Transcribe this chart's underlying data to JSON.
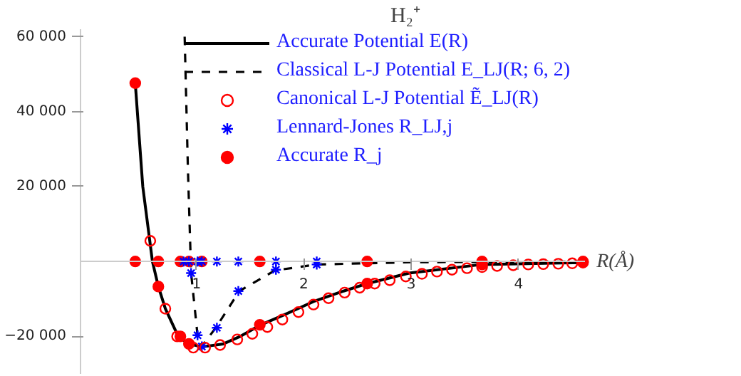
{
  "chart_data": {
    "type": "line",
    "title": "H₂⁺",
    "xlabel": "R(Å)",
    "xlim": [
      -0.08,
      4.62
    ],
    "ylim": [
      -30000,
      62000
    ],
    "xticks": [
      1,
      2,
      3,
      4
    ],
    "yticks": [
      {
        "value": 60000,
        "label": "60 000"
      },
      {
        "value": 40000,
        "label": "40 000"
      },
      {
        "value": 20000,
        "label": "20 000"
      },
      {
        "value": -20000,
        "label": "−20 000"
      }
    ],
    "grid": false,
    "legend": "top right",
    "series": [
      {
        "name": "Accurate Potential E(R)",
        "line_style": "solid",
        "color": "#000000",
        "x": [
          0.43,
          0.5,
          0.59,
          0.645,
          0.71,
          0.83,
          0.93,
          1.05,
          1.25,
          1.4,
          1.6,
          1.82,
          2.09,
          2.37,
          2.59,
          2.98,
          3.66,
          4.6
        ],
        "values": [
          47600,
          20000,
          0,
          -6700,
          -12600,
          -20000,
          -22000,
          -22800,
          -22000,
          -20100,
          -16900,
          -14200,
          -10700,
          -7900,
          -5900,
          -3100,
          -800,
          -300
        ]
      },
      {
        "name": "Classical L-J Potential E_LJ(R; 6, 2)",
        "line_style": "dashed",
        "color": "#000000",
        "x": [
          0.89,
          0.92,
          0.95,
          1.01,
          1.05,
          1.18,
          1.4,
          1.73,
          2.12,
          3.0,
          4.6
        ],
        "values": [
          60000,
          25000,
          -3100,
          -19700,
          -22600,
          -17700,
          -7900,
          -2400,
          -800,
          -200,
          0
        ]
      },
      {
        "name": "Canonical L-J Potential Ẽ_LJ(R)",
        "type": "scatter",
        "marker": "circle",
        "color": "#ff0000",
        "x": [
          0.57,
          0.71,
          0.82,
          0.97,
          1.08,
          1.22,
          1.38,
          1.52,
          1.66,
          1.8,
          1.95,
          2.09,
          2.23,
          2.38,
          2.52,
          2.66,
          2.8,
          2.95,
          3.1,
          3.24,
          3.38,
          3.52,
          3.66,
          3.8,
          3.95,
          4.09,
          4.23,
          4.37,
          4.5
        ],
        "values": [
          5500,
          -12600,
          -20000,
          -23000,
          -23000,
          -22300,
          -20800,
          -19300,
          -17500,
          -15500,
          -13500,
          -11500,
          -9800,
          -8300,
          -7000,
          -5900,
          -5000,
          -4000,
          -3300,
          -2700,
          -2200,
          -1800,
          -1500,
          -1200,
          -1000,
          -800,
          -700,
          -600,
          -500
        ]
      },
      {
        "name": "Lennard-Jones R_LJ,j",
        "type": "scatter",
        "marker": "cross",
        "color": "#0000ff",
        "x": [
          0.88,
          0.93,
          1.01,
          1.05,
          1.19,
          1.39,
          1.74,
          2.12,
          0.95,
          1.01,
          1.05,
          1.19,
          1.39,
          1.74,
          2.12
        ],
        "values": [
          0,
          0,
          0,
          0,
          0,
          0,
          0,
          0,
          -3100,
          -19700,
          -22700,
          -17700,
          -7900,
          -2200,
          -800
        ]
      },
      {
        "name": "Accurate R_j",
        "type": "scatter",
        "marker": "circle",
        "color": "#ff0000",
        "x": [
          0.43,
          0.645,
          0.85,
          0.93,
          1.05,
          1.59,
          2.59,
          3.66,
          4.6,
          0.43,
          0.645,
          0.85,
          0.93,
          1.59,
          2.59,
          3.66,
          4.6
        ],
        "values": [
          0,
          0,
          0,
          0,
          0,
          0,
          0,
          0,
          0,
          47600,
          -6700,
          -20000,
          -22000,
          -16900,
          -5900,
          -800,
          -300
        ]
      }
    ]
  }
}
